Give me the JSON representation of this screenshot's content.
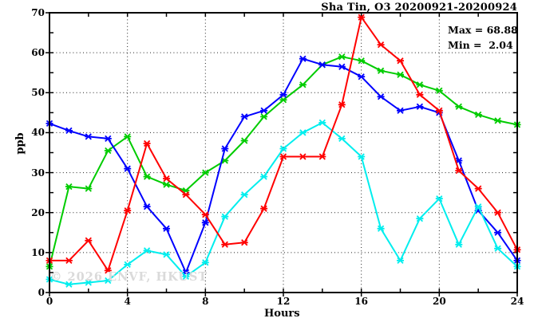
{
  "title": "Sha Tin, O3 20200921-20200924",
  "stats": {
    "max_label": "Max = 68.88",
    "min_label": "Min =  2.04"
  },
  "watermark": "© 2026 ENVF, HKUST",
  "axes": {
    "y_title": "ppb",
    "x_title": "Hours",
    "y_tick_labels": [
      0,
      10,
      20,
      30,
      40,
      50,
      60,
      70
    ],
    "x_tick_labels": [
      0,
      4,
      8,
      12,
      16,
      20,
      24
    ]
  },
  "chart_data": {
    "type": "line",
    "title": "Sha Tin, O3 20200921-20200924",
    "xlabel": "Hours",
    "ylabel": "ppb",
    "xlim": [
      0,
      24
    ],
    "ylim": [
      0,
      70
    ],
    "grid": "dotted, at every 10 ppb horizontal and every 4 h vertical",
    "legend_position": "none",
    "marker": "asterisk",
    "stat_max": 68.88,
    "stat_min": 2.04,
    "x": [
      0,
      1,
      2,
      3,
      4,
      5,
      6,
      7,
      8,
      9,
      10,
      11,
      12,
      13,
      14,
      15,
      16,
      17,
      18,
      19,
      20,
      21,
      22,
      23,
      24
    ],
    "x_minor_tick_step": 2,
    "y_minor_tick_step": 5,
    "series": [
      {
        "name": "series-green",
        "color": "#00cc00",
        "values": [
          6.5,
          26.5,
          26,
          35.5,
          39,
          29,
          27,
          25.5,
          30,
          33,
          38,
          44,
          48.2,
          52,
          57,
          59,
          58,
          55.5,
          54.5,
          52,
          50.5,
          46.5,
          44.5,
          43,
          42
        ]
      },
      {
        "name": "series-blue",
        "color": "#0000ff",
        "values": [
          42.3,
          40.5,
          39,
          38.5,
          31,
          21.5,
          16,
          5,
          17.5,
          36,
          44,
          45.5,
          49.5,
          58.5,
          57,
          56.5,
          54,
          49,
          45.5,
          46.5,
          45,
          33,
          20.5,
          15,
          8
        ]
      },
      {
        "name": "series-cyan",
        "color": "#00eeee",
        "values": [
          3.3,
          2.04,
          2.5,
          3,
          7,
          10.5,
          9.5,
          4,
          7.5,
          19,
          24.5,
          29,
          36,
          40,
          42.5,
          38.5,
          34,
          16,
          8,
          18.5,
          23.5,
          12,
          21.5,
          11,
          6.5
        ]
      },
      {
        "name": "series-red",
        "color": "#ff0000",
        "values": [
          8,
          8,
          13,
          5.5,
          20.5,
          37.3,
          28.5,
          24.5,
          19.5,
          12,
          12.5,
          21,
          34,
          34,
          34,
          47,
          68.88,
          62,
          58,
          49.5,
          45.5,
          30.5,
          26,
          20,
          10.7
        ]
      }
    ]
  }
}
